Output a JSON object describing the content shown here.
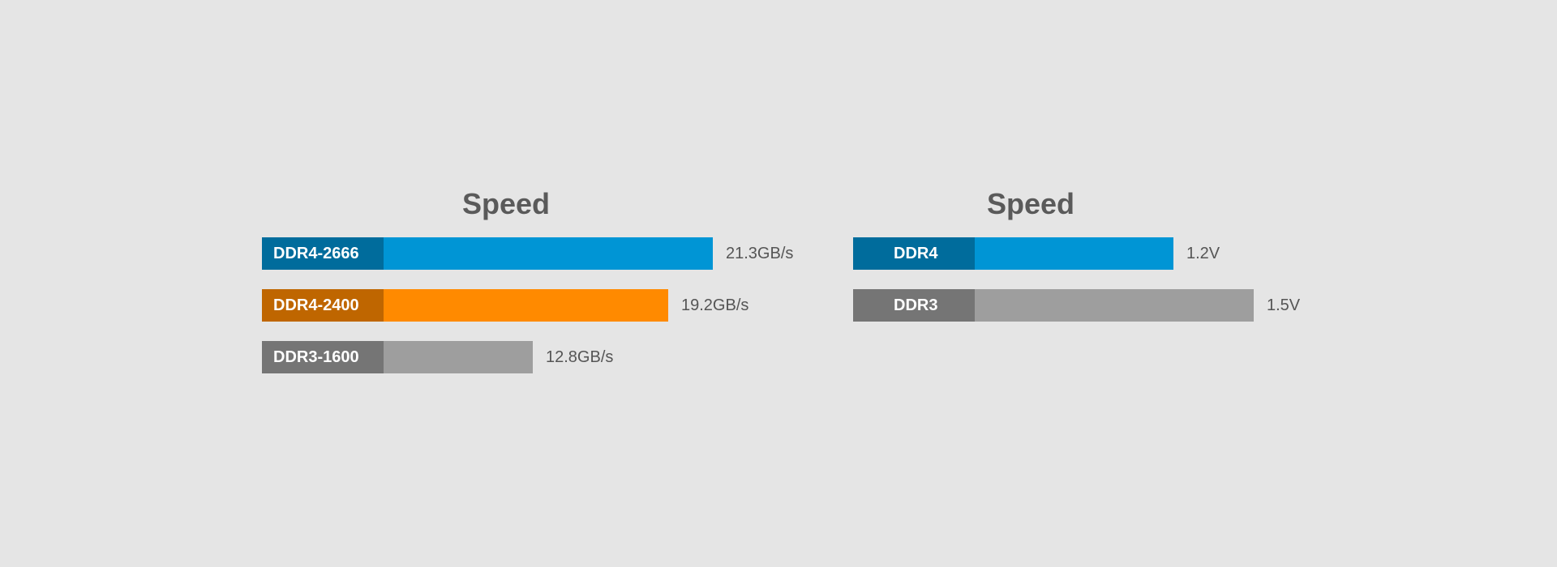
{
  "colors": {
    "background": "#e5e5e5",
    "title_text": "#5a5a5a",
    "value_text": "#555555",
    "label_text": "#ffffff"
  },
  "chart_data": [
    {
      "type": "bar",
      "orientation": "horizontal",
      "title": "Speed",
      "value_unit": "GB/s",
      "xlim": [
        0,
        21.3
      ],
      "grid": false,
      "legend": "none",
      "categories": [
        "DDR4-2666",
        "DDR4-2400",
        "DDR3-1600"
      ],
      "values": [
        21.3,
        19.2,
        12.8
      ],
      "value_labels": [
        "21.3GB/s",
        "19.2GB/s",
        "12.8GB/s"
      ],
      "bar_colors": [
        "#0095d5",
        "#ff8a00",
        "#9e9e9e"
      ],
      "label_colors": [
        "#006c9c",
        "#bf6600",
        "#757575"
      ]
    },
    {
      "type": "bar",
      "orientation": "horizontal",
      "title": "Speed",
      "value_unit": "V",
      "xlim": [
        0,
        1.5
      ],
      "grid": false,
      "legend": "none",
      "categories": [
        "DDR4",
        "DDR3"
      ],
      "values": [
        1.2,
        1.5
      ],
      "value_labels": [
        "1.2V",
        "1.5V"
      ],
      "bar_colors": [
        "#0095d5",
        "#9e9e9e"
      ],
      "label_colors": [
        "#006c9c",
        "#757575"
      ]
    }
  ]
}
